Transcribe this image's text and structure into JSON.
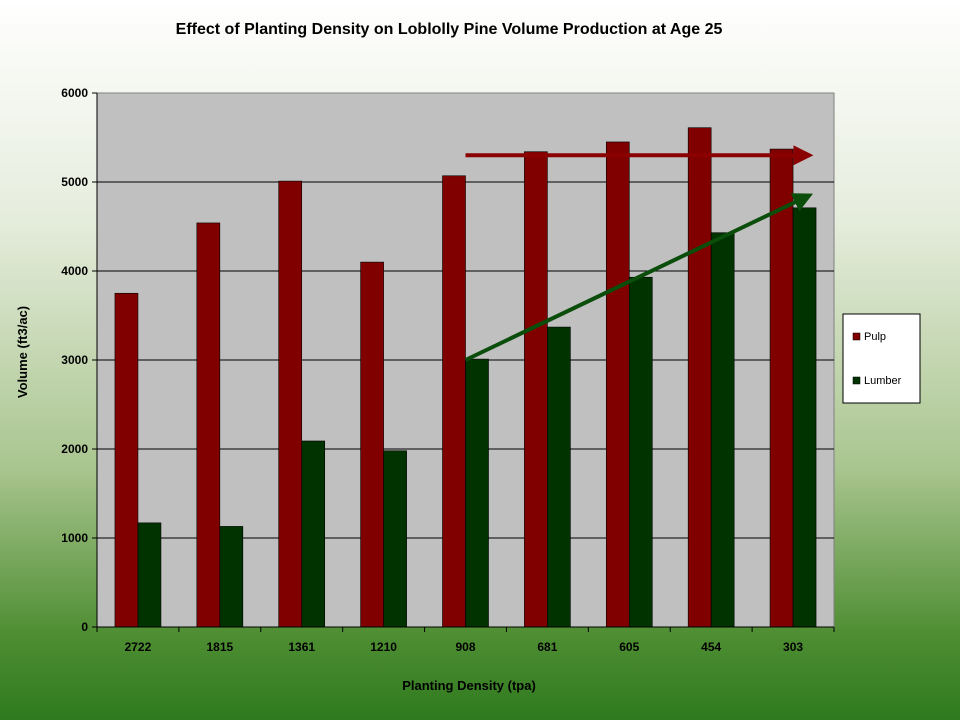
{
  "chart_data": {
    "type": "bar",
    "title": "Effect of Planting Density on Loblolly Pine Volume Production at Age 25",
    "xlabel": "Planting Density (tpa)",
    "ylabel": "Volume (ft3/ac)",
    "categories": [
      "2722",
      "1815",
      "1361",
      "1210",
      "908",
      "681",
      "605",
      "454",
      "303"
    ],
    "series": [
      {
        "name": "Pulp",
        "color": "#800000",
        "values": [
          3750,
          4540,
          5010,
          4100,
          5070,
          5340,
          5450,
          5610,
          5370
        ]
      },
      {
        "name": "Lumber",
        "color": "#003300",
        "values": [
          1170,
          1130,
          2090,
          1980,
          3010,
          3370,
          3930,
          4430,
          4710
        ]
      }
    ],
    "ylim": [
      0,
      6000
    ],
    "yticks": [
      0,
      1000,
      2000,
      3000,
      4000,
      5000,
      6000
    ],
    "grid": true,
    "plot_background": "#c0c0c0",
    "legend_position": "right",
    "trend_arrows": [
      {
        "color": "#8b0000",
        "from": {
          "x": "908",
          "y": 5300
        },
        "to": {
          "x": "303",
          "y": 5300
        }
      },
      {
        "color": "#0b4d0b",
        "from": {
          "x": "908",
          "y": 3000
        },
        "to": {
          "x": "303",
          "y": 4850
        }
      }
    ]
  }
}
